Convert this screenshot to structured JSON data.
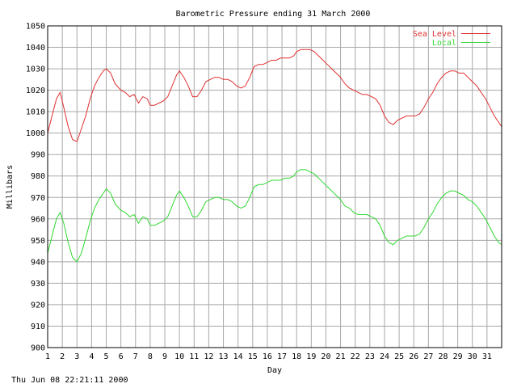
{
  "chart_data": {
    "type": "line",
    "title": "Barometric Pressure ending 31 March 2000",
    "xlabel": "Day",
    "ylabel": "Millibars",
    "xlim": [
      1,
      32
    ],
    "ylim": [
      900,
      1050
    ],
    "y_ticks": [
      900,
      910,
      920,
      930,
      940,
      950,
      960,
      970,
      980,
      990,
      1000,
      1010,
      1020,
      1030,
      1040,
      1050
    ],
    "x_ticks": [
      "1",
      "2",
      "3",
      "4",
      "5",
      "6",
      "7",
      "8",
      "9",
      "10",
      "11",
      "12",
      "13",
      "14",
      "15",
      "16",
      "17",
      "18",
      "19",
      "20",
      "21",
      "22",
      "23",
      "24",
      "25",
      "26",
      "27",
      "28",
      "29",
      "30",
      "31"
    ],
    "grid": true,
    "legend_position": "top-right",
    "series": [
      {
        "name": "Sea Level",
        "color": "#e03030",
        "points": [
          [
            1.0,
            1000
          ],
          [
            1.3,
            1008
          ],
          [
            1.6,
            1016
          ],
          [
            1.85,
            1019
          ],
          [
            2.1,
            1012
          ],
          [
            2.4,
            1003
          ],
          [
            2.7,
            997
          ],
          [
            3.0,
            996
          ],
          [
            3.3,
            1002
          ],
          [
            3.6,
            1008
          ],
          [
            3.9,
            1016
          ],
          [
            4.2,
            1022
          ],
          [
            4.5,
            1026
          ],
          [
            4.8,
            1029
          ],
          [
            5.0,
            1030
          ],
          [
            5.3,
            1028
          ],
          [
            5.6,
            1023
          ],
          [
            6.0,
            1020
          ],
          [
            6.3,
            1019
          ],
          [
            6.6,
            1017
          ],
          [
            6.9,
            1018
          ],
          [
            7.2,
            1014
          ],
          [
            7.5,
            1017
          ],
          [
            7.8,
            1016
          ],
          [
            8.0,
            1013
          ],
          [
            8.3,
            1013
          ],
          [
            8.6,
            1014
          ],
          [
            8.9,
            1015
          ],
          [
            9.2,
            1017
          ],
          [
            9.5,
            1022
          ],
          [
            9.8,
            1027
          ],
          [
            10.0,
            1029
          ],
          [
            10.3,
            1026
          ],
          [
            10.6,
            1022
          ],
          [
            10.9,
            1017
          ],
          [
            11.2,
            1017
          ],
          [
            11.5,
            1020
          ],
          [
            11.8,
            1024
          ],
          [
            12.1,
            1025
          ],
          [
            12.4,
            1026
          ],
          [
            12.7,
            1026
          ],
          [
            13.0,
            1025
          ],
          [
            13.3,
            1025
          ],
          [
            13.6,
            1024
          ],
          [
            13.9,
            1022
          ],
          [
            14.2,
            1021
          ],
          [
            14.5,
            1022
          ],
          [
            14.8,
            1026
          ],
          [
            15.1,
            1031
          ],
          [
            15.4,
            1032
          ],
          [
            15.7,
            1032
          ],
          [
            16.0,
            1033
          ],
          [
            16.3,
            1034
          ],
          [
            16.6,
            1034
          ],
          [
            16.9,
            1035
          ],
          [
            17.2,
            1035
          ],
          [
            17.5,
            1035
          ],
          [
            17.8,
            1036
          ],
          [
            18.0,
            1038
          ],
          [
            18.3,
            1039
          ],
          [
            18.6,
            1039
          ],
          [
            18.9,
            1039
          ],
          [
            19.2,
            1038
          ],
          [
            19.5,
            1036
          ],
          [
            19.8,
            1034
          ],
          [
            20.1,
            1032
          ],
          [
            20.4,
            1030
          ],
          [
            20.7,
            1028
          ],
          [
            21.0,
            1026
          ],
          [
            21.3,
            1023
          ],
          [
            21.6,
            1021
          ],
          [
            21.9,
            1020
          ],
          [
            22.2,
            1019
          ],
          [
            22.5,
            1018
          ],
          [
            22.8,
            1018
          ],
          [
            23.1,
            1017
          ],
          [
            23.4,
            1016
          ],
          [
            23.7,
            1013
          ],
          [
            24.0,
            1008
          ],
          [
            24.3,
            1005
          ],
          [
            24.6,
            1004
          ],
          [
            24.9,
            1006
          ],
          [
            25.2,
            1007
          ],
          [
            25.5,
            1008
          ],
          [
            25.8,
            1008
          ],
          [
            26.1,
            1008
          ],
          [
            26.4,
            1009
          ],
          [
            26.7,
            1012
          ],
          [
            27.0,
            1016
          ],
          [
            27.3,
            1019
          ],
          [
            27.6,
            1023
          ],
          [
            27.9,
            1026
          ],
          [
            28.2,
            1028
          ],
          [
            28.5,
            1029
          ],
          [
            28.8,
            1029
          ],
          [
            29.1,
            1028
          ],
          [
            29.4,
            1028
          ],
          [
            29.7,
            1026
          ],
          [
            30.0,
            1024
          ],
          [
            30.3,
            1022
          ],
          [
            30.6,
            1019
          ],
          [
            30.9,
            1016
          ],
          [
            31.2,
            1012
          ],
          [
            31.5,
            1008
          ],
          [
            31.8,
            1005
          ],
          [
            32.0,
            1003
          ]
        ]
      },
      {
        "name": "Local",
        "color": "#30d830",
        "points": [
          [
            1.0,
            944
          ],
          [
            1.3,
            952
          ],
          [
            1.6,
            960
          ],
          [
            1.85,
            963
          ],
          [
            2.1,
            958
          ],
          [
            2.4,
            949
          ],
          [
            2.7,
            942
          ],
          [
            3.0,
            940
          ],
          [
            3.3,
            944
          ],
          [
            3.6,
            951
          ],
          [
            3.9,
            959
          ],
          [
            4.2,
            965
          ],
          [
            4.5,
            969
          ],
          [
            4.8,
            972
          ],
          [
            5.0,
            974
          ],
          [
            5.3,
            972
          ],
          [
            5.6,
            967
          ],
          [
            6.0,
            964
          ],
          [
            6.3,
            963
          ],
          [
            6.6,
            961
          ],
          [
            6.9,
            962
          ],
          [
            7.2,
            958
          ],
          [
            7.5,
            961
          ],
          [
            7.8,
            960
          ],
          [
            8.0,
            957
          ],
          [
            8.3,
            957
          ],
          [
            8.6,
            958
          ],
          [
            8.9,
            959
          ],
          [
            9.2,
            961
          ],
          [
            9.5,
            966
          ],
          [
            9.8,
            971
          ],
          [
            10.0,
            973
          ],
          [
            10.3,
            970
          ],
          [
            10.6,
            966
          ],
          [
            10.9,
            961
          ],
          [
            11.2,
            961
          ],
          [
            11.5,
            964
          ],
          [
            11.8,
            968
          ],
          [
            12.1,
            969
          ],
          [
            12.4,
            970
          ],
          [
            12.7,
            970
          ],
          [
            13.0,
            969
          ],
          [
            13.3,
            969
          ],
          [
            13.6,
            968
          ],
          [
            13.9,
            966
          ],
          [
            14.2,
            965
          ],
          [
            14.5,
            966
          ],
          [
            14.8,
            970
          ],
          [
            15.1,
            975
          ],
          [
            15.4,
            976
          ],
          [
            15.7,
            976
          ],
          [
            16.0,
            977
          ],
          [
            16.3,
            978
          ],
          [
            16.6,
            978
          ],
          [
            16.9,
            978
          ],
          [
            17.2,
            979
          ],
          [
            17.5,
            979
          ],
          [
            17.8,
            980
          ],
          [
            18.0,
            982
          ],
          [
            18.3,
            983
          ],
          [
            18.6,
            983
          ],
          [
            18.9,
            982
          ],
          [
            19.2,
            981
          ],
          [
            19.5,
            979
          ],
          [
            19.8,
            977
          ],
          [
            20.1,
            975
          ],
          [
            20.4,
            973
          ],
          [
            20.7,
            971
          ],
          [
            21.0,
            969
          ],
          [
            21.3,
            966
          ],
          [
            21.6,
            965
          ],
          [
            21.9,
            963
          ],
          [
            22.2,
            962
          ],
          [
            22.5,
            962
          ],
          [
            22.8,
            962
          ],
          [
            23.1,
            961
          ],
          [
            23.4,
            960
          ],
          [
            23.7,
            957
          ],
          [
            24.0,
            952
          ],
          [
            24.3,
            949
          ],
          [
            24.6,
            948
          ],
          [
            24.9,
            950
          ],
          [
            25.2,
            951
          ],
          [
            25.5,
            952
          ],
          [
            25.8,
            952
          ],
          [
            26.1,
            952
          ],
          [
            26.4,
            953
          ],
          [
            26.7,
            956
          ],
          [
            27.0,
            960
          ],
          [
            27.3,
            963
          ],
          [
            27.6,
            967
          ],
          [
            27.9,
            970
          ],
          [
            28.2,
            972
          ],
          [
            28.5,
            973
          ],
          [
            28.8,
            973
          ],
          [
            29.1,
            972
          ],
          [
            29.4,
            971
          ],
          [
            29.7,
            969
          ],
          [
            30.0,
            968
          ],
          [
            30.3,
            966
          ],
          [
            30.6,
            963
          ],
          [
            30.9,
            960
          ],
          [
            31.2,
            956
          ],
          [
            31.5,
            952
          ],
          [
            31.8,
            949
          ],
          [
            32.0,
            948
          ]
        ]
      }
    ]
  },
  "footer": {
    "timestamp": "Thu Jun 08 22:21:11 2000"
  }
}
